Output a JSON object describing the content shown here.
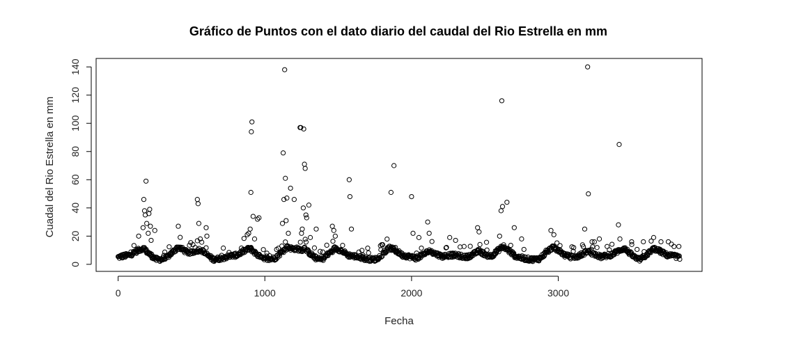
{
  "chart_data": {
    "type": "scatter",
    "title": "Gráfico de Puntos con el dato diario del caudal del Rio Estrella en mm",
    "xlabel": "Fecha",
    "ylabel": "Cuadal del Rio Estrella en mm",
    "xlim": [
      -150,
      3980
    ],
    "ylim": [
      -5,
      146
    ],
    "xticks": [
      0,
      1000,
      2000,
      3000
    ],
    "yticks": [
      0,
      20,
      40,
      60,
      80,
      100,
      120,
      140
    ],
    "grid": false,
    "legend": "none",
    "marker": "open-circle",
    "colors": {
      "points": "#000000",
      "axes": "#000000"
    },
    "outliers": [
      [
        140,
        20
      ],
      [
        170,
        26
      ],
      [
        175,
        46
      ],
      [
        180,
        38
      ],
      [
        185,
        35
      ],
      [
        190,
        59
      ],
      [
        195,
        29
      ],
      [
        205,
        22
      ],
      [
        210,
        36
      ],
      [
        215,
        39
      ],
      [
        220,
        27
      ],
      [
        225,
        17
      ],
      [
        250,
        24
      ],
      [
        410,
        27
      ],
      [
        540,
        46
      ],
      [
        545,
        43
      ],
      [
        550,
        29
      ],
      [
        560,
        18
      ],
      [
        600,
        26
      ],
      [
        605,
        20
      ],
      [
        880,
        21
      ],
      [
        890,
        22
      ],
      [
        900,
        25
      ],
      [
        905,
        51
      ],
      [
        908,
        94
      ],
      [
        912,
        101
      ],
      [
        920,
        34
      ],
      [
        930,
        18
      ],
      [
        950,
        32
      ],
      [
        960,
        33
      ],
      [
        1120,
        29
      ],
      [
        1125,
        79
      ],
      [
        1130,
        46
      ],
      [
        1135,
        138
      ],
      [
        1140,
        61
      ],
      [
        1145,
        31
      ],
      [
        1150,
        47
      ],
      [
        1160,
        22
      ],
      [
        1175,
        54
      ],
      [
        1200,
        46
      ],
      [
        1240,
        97
      ],
      [
        1245,
        97
      ],
      [
        1250,
        22
      ],
      [
        1255,
        25
      ],
      [
        1262,
        40
      ],
      [
        1265,
        96
      ],
      [
        1270,
        71
      ],
      [
        1275,
        68
      ],
      [
        1280,
        35
      ],
      [
        1285,
        33
      ],
      [
        1300,
        42
      ],
      [
        1310,
        19
      ],
      [
        1350,
        25
      ],
      [
        1460,
        27
      ],
      [
        1470,
        24
      ],
      [
        1480,
        20
      ],
      [
        1575,
        60
      ],
      [
        1580,
        48
      ],
      [
        1590,
        25
      ],
      [
        1860,
        51
      ],
      [
        1880,
        70
      ],
      [
        1890,
        12
      ],
      [
        2000,
        48
      ],
      [
        2010,
        22
      ],
      [
        2050,
        19
      ],
      [
        2110,
        30
      ],
      [
        2120,
        22
      ],
      [
        2260,
        19
      ],
      [
        2300,
        17
      ],
      [
        2450,
        26
      ],
      [
        2460,
        23
      ],
      [
        2600,
        20
      ],
      [
        2610,
        38
      ],
      [
        2615,
        116
      ],
      [
        2620,
        41
      ],
      [
        2650,
        44
      ],
      [
        2700,
        26
      ],
      [
        2750,
        18
      ],
      [
        2950,
        24
      ],
      [
        2970,
        21
      ],
      [
        3180,
        25
      ],
      [
        3200,
        140
      ],
      [
        3205,
        50
      ],
      [
        3230,
        16
      ],
      [
        3280,
        18
      ],
      [
        3410,
        28
      ],
      [
        3415,
        85
      ],
      [
        3420,
        18
      ],
      [
        3500,
        16
      ],
      [
        3580,
        16
      ],
      [
        3650,
        19
      ],
      [
        3700,
        16
      ],
      [
        3750,
        16
      ]
    ]
  }
}
